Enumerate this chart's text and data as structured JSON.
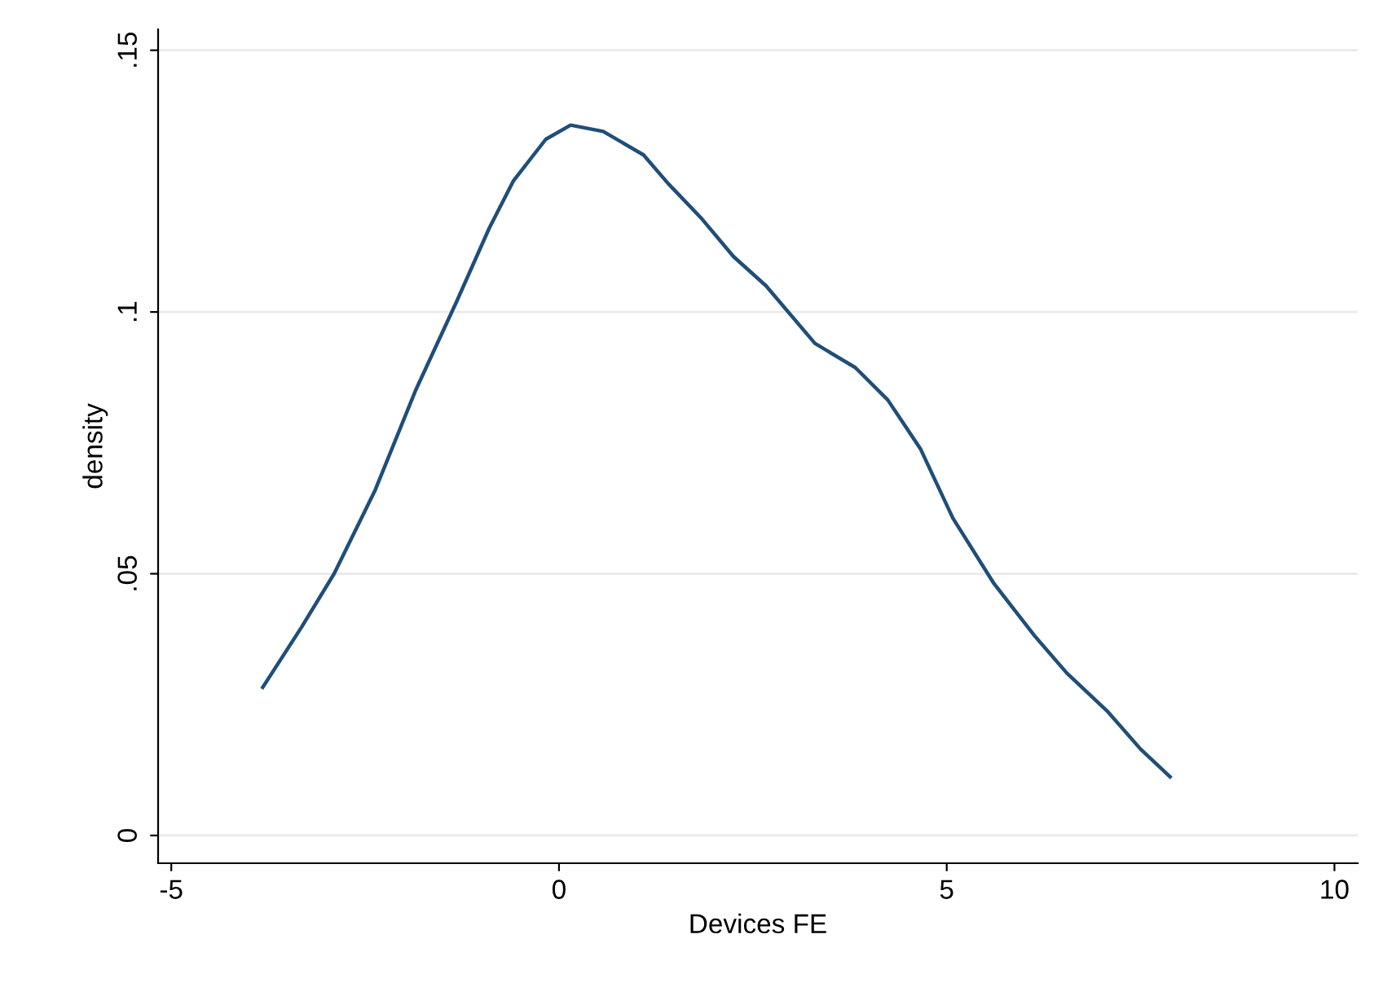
{
  "chart_data": {
    "type": "line",
    "xlabel": "Devices FE",
    "ylabel": "density",
    "x": [
      -3.82,
      -3.32,
      -2.9,
      -2.37,
      -1.85,
      -1.32,
      -0.9,
      -0.59,
      -0.17,
      0.15,
      0.57,
      1.09,
      1.41,
      1.83,
      2.25,
      2.67,
      3.3,
      3.82,
      4.24,
      4.66,
      5.08,
      5.61,
      6.13,
      6.55,
      7.08,
      7.5,
      7.88
    ],
    "series": [
      {
        "color": "#1f4e79",
        "values": [
          0.0283,
          0.0398,
          0.05,
          0.066,
          0.085,
          0.102,
          0.116,
          0.125,
          0.133,
          0.1357,
          0.1345,
          0.13,
          0.1245,
          0.118,
          0.1106,
          0.105,
          0.094,
          0.0894,
          0.0832,
          0.0739,
          0.0606,
          0.0481,
          0.0382,
          0.031,
          0.0236,
          0.0165,
          0.0112
        ]
      }
    ],
    "xlim": [
      -5.17,
      10.3
    ],
    "ylim": [
      -0.0053,
      0.154
    ],
    "xticks": [
      -5,
      0,
      5,
      10
    ],
    "yticks": [
      {
        "value": 0,
        "label": "0"
      },
      {
        "value": 0.05,
        "label": ".05"
      },
      {
        "value": 0.1,
        "label": ".1"
      },
      {
        "value": 0.15,
        "label": ".15"
      }
    ],
    "grid": "y",
    "marker": "none",
    "line_style": "solid"
  }
}
